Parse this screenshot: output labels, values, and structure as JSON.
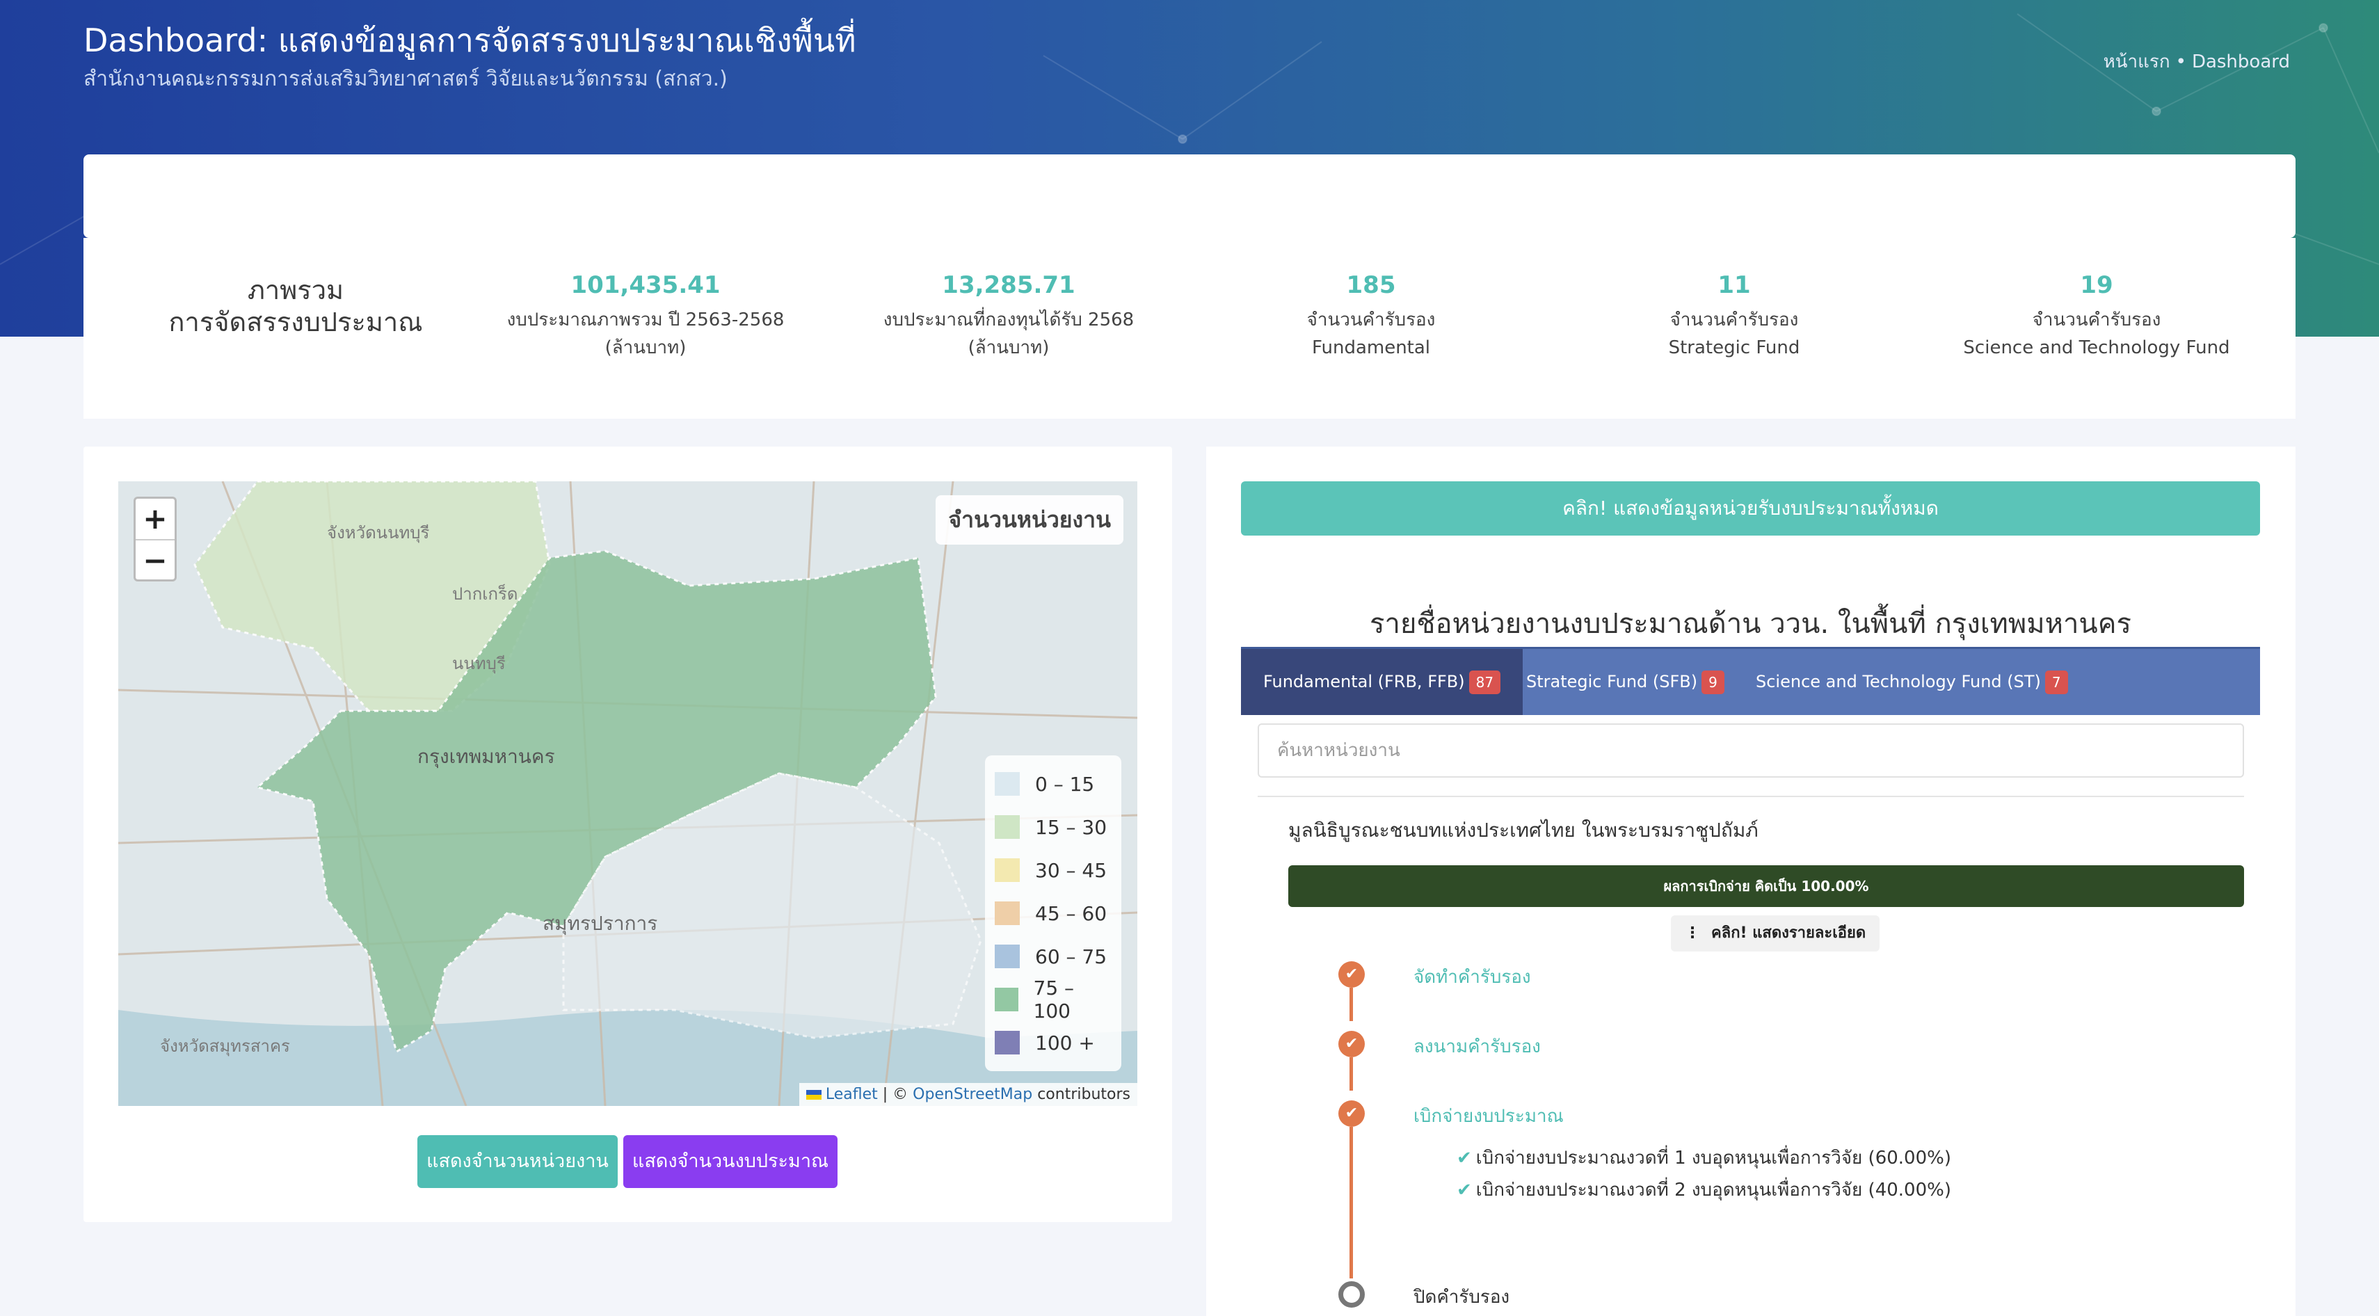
{
  "header": {
    "title": "Dashboard: แสดงข้อมูลการจัดสรรงบประมาณเชิงพื้นที่",
    "subtitle": "สำนักงานคณะกรรมการส่งเสริมวิทยาศาสตร์ วิจัยและนวัตกรรม (สกสว.)",
    "breadcrumb": [
      "หน้าแรก",
      "Dashboard"
    ]
  },
  "overview": {
    "title_line1": "ภาพรวม",
    "title_line2": "การจัดสรรงบประมาณ",
    "stats": [
      {
        "value": "101,435.41",
        "label1": "งบประมาณภาพรวม ปี 2563-2568",
        "label2": "(ล้านบาท)"
      },
      {
        "value": "13,285.71",
        "label1": "งบประมาณที่กองทุนได้รับ 2568",
        "label2": "(ล้านบาท)"
      },
      {
        "value": "185",
        "label1": "จำนวนคำรับรอง",
        "label2": "Fundamental"
      },
      {
        "value": "11",
        "label1": "จำนวนคำรับรอง",
        "label2": "Strategic Fund"
      },
      {
        "value": "19",
        "label1": "จำนวนคำรับรอง",
        "label2": "Science and Technology Fund"
      }
    ]
  },
  "map": {
    "zoom_in": "+",
    "zoom_out": "−",
    "info_title": "จำนวนหน่วยงาน",
    "legend": [
      {
        "label": "0 – 15",
        "color": "#dce9f0"
      },
      {
        "label": "15 – 30",
        "color": "#cfe6c5"
      },
      {
        "label": "30 – 45",
        "color": "#f3e9b0"
      },
      {
        "label": "45 – 60",
        "color": "#efcfa8"
      },
      {
        "label": "60 – 75",
        "color": "#a9c3de"
      },
      {
        "label": "75 – 100",
        "color": "#93c8a3"
      },
      {
        "label": "100 +",
        "color": "#7f7fb5"
      }
    ],
    "place_labels": [
      "จังหวัดนนทบุรี",
      "ปากเกร็ด",
      "นนทบุรี",
      "กรุงเทพมหานคร",
      "สมุทรปราการ",
      "จังหวัดสมุทรสาคร"
    ],
    "attribution": {
      "leaflet": "Leaflet",
      "sep": " | © ",
      "osm": "OpenStreetMap",
      "contrib": " contributors"
    },
    "btn_units": "แสดงจำนวนหน่วยงาน",
    "btn_budget": "แสดงจำนวนงบประมาณ"
  },
  "panel": {
    "btn_all": "คลิก! แสดงข้อมูลหน่วยรับงบประมาณทั้งหมด",
    "list_title": "รายชื่อหน่วยงานงบประมาณด้าน ววน. ในพื้นที่ กรุงเทพมหานคร",
    "tabs": [
      {
        "label": "Fundamental (FRB, FFB)",
        "count": "87"
      },
      {
        "label": "Strategic Fund (SFB)",
        "count": "9"
      },
      {
        "label": "Science and Technology Fund (ST)",
        "count": "7"
      }
    ],
    "search_placeholder": "ค้นหาหน่วยงาน",
    "org_name": "มูลนิธิบูรณะชนบทแห่งประเทศไทย ในพระบรมราชูปถัมภ์",
    "progress_label": "ผลการเบิกจ่าย คิดเป็น 100.00%",
    "progress_pct": 100,
    "btn_detail": "คลิก! แสดงรายละเอียด",
    "steps": [
      {
        "label": "จัดทำคำรับรอง"
      },
      {
        "label": "ลงนามคำรับรอง"
      },
      {
        "label": "เบิกจ่ายงบประมาณ"
      },
      {
        "label": "ปิดคำรับรอง"
      }
    ],
    "sub_items": [
      "เบิกจ่ายงบประมาณงวดที่ 1 งบอุดหนุนเพื่อการวิจัย (60.00%)",
      "เบิกจ่ายงบประมาณงวดที่ 2 งบอุดหนุนเพื่อการวิจัย (40.00%)"
    ],
    "check_icon": "✔"
  }
}
